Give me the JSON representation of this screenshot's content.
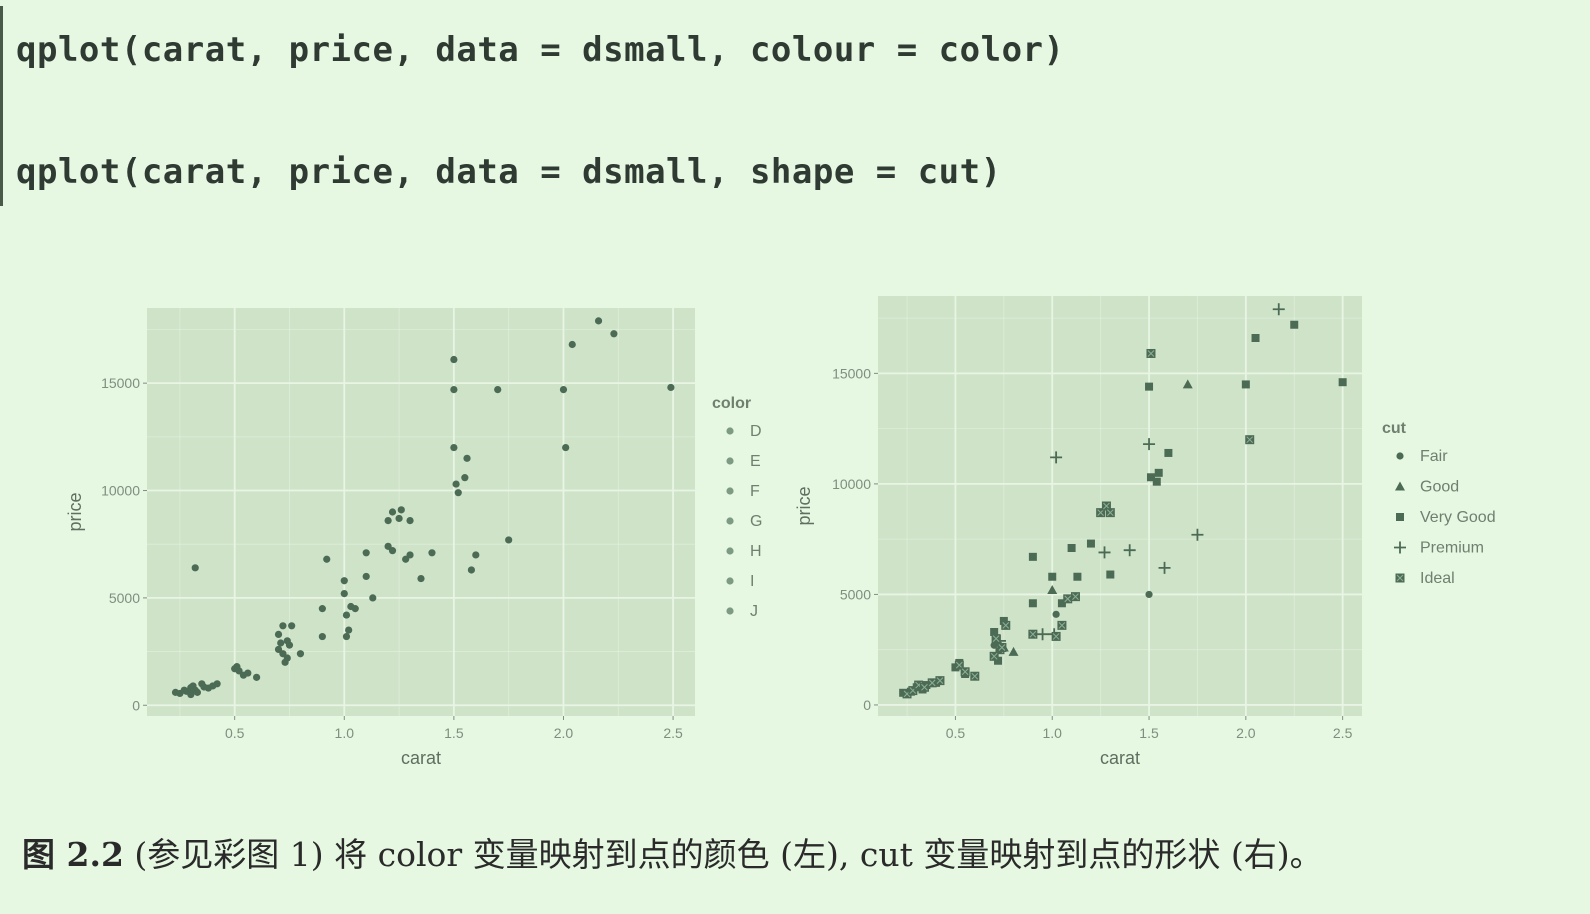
{
  "code": {
    "line1": "qplot(carat, price, data = dsmall, colour = color)",
    "line2": "qplot(carat, price, data = dsmall, shape = cut)"
  },
  "caption": {
    "label": "图 2.2",
    "text": " (参见彩图 1) 将 color 变量映射到点的颜色 (左), cut 变量映射到点的形状 (右)。"
  },
  "colors": {
    "panel": "#cfe3c9",
    "grid": "#e8f5e4",
    "point": "#4c6b55",
    "axis_text": "#7f8f7f"
  },
  "chart_data": [
    {
      "type": "scatter",
      "title": "",
      "xlabel": "carat",
      "ylabel": "price",
      "xlim": [
        0.1,
        2.6
      ],
      "ylim": [
        -500,
        18500
      ],
      "x_ticks": [
        0.5,
        1.0,
        1.5,
        2.0,
        2.5
      ],
      "x_tick_labels": [
        "0.5",
        "1.0",
        "1.5",
        "2.0",
        "2.5"
      ],
      "y_ticks": [
        0,
        5000,
        10000,
        15000
      ],
      "y_tick_labels": [
        "0",
        "5000",
        "10000",
        "15000"
      ],
      "grid": true,
      "legend": {
        "title": "color",
        "position": "right",
        "entries": [
          "D",
          "E",
          "F",
          "G",
          "H",
          "I",
          "J"
        ],
        "shapes": [
          "circle",
          "circle",
          "circle",
          "circle",
          "circle",
          "circle",
          "circle"
        ]
      },
      "series": [
        {
          "x": [
            0.23,
            0.25,
            0.27,
            0.28,
            0.3,
            0.3,
            0.31,
            0.32,
            0.33,
            0.35,
            0.38,
            0.4,
            0.42,
            0.5,
            0.51,
            0.52,
            0.54,
            0.56,
            0.6,
            0.7,
            0.7,
            0.71,
            0.72,
            0.73,
            0.74,
            0.75,
            0.76,
            0.8,
            0.9,
            0.9,
            1.0,
            1.0,
            1.01,
            1.01,
            1.02,
            1.03,
            1.05,
            1.1,
            1.1,
            1.13,
            1.2,
            1.2,
            1.22,
            1.25,
            1.26,
            1.3,
            1.35,
            1.4,
            1.5,
            1.5,
            1.5,
            1.51,
            1.52,
            1.55,
            1.56,
            1.58,
            1.6,
            1.7,
            1.75,
            2.0,
            2.01,
            2.04,
            2.16,
            2.23,
            2.49,
            0.32,
            0.36,
            0.72,
            0.74,
            0.92,
            1.22,
            1.28,
            1.3
          ],
          "y": [
            600,
            550,
            700,
            650,
            820,
            500,
            900,
            700,
            600,
            1000,
            800,
            900,
            1000,
            1700,
            1800,
            1600,
            1400,
            1500,
            1300,
            3300,
            2600,
            2900,
            2400,
            2000,
            3000,
            2800,
            3700,
            2400,
            4500,
            3200,
            5800,
            5200,
            4200,
            3200,
            3500,
            4600,
            4500,
            6000,
            7100,
            5000,
            7400,
            8600,
            9000,
            8700,
            9100,
            7000,
            5900,
            7100,
            14700,
            12000,
            16100,
            10300,
            9900,
            10600,
            11500,
            6300,
            7000,
            14700,
            7700,
            14700,
            12000,
            16800,
            17900,
            17300,
            14800,
            6400,
            850,
            3700,
            2200,
            6800,
            7200,
            6800,
            8600
          ]
        }
      ]
    },
    {
      "type": "scatter",
      "title": "",
      "xlabel": "carat",
      "ylabel": "price",
      "xlim": [
        0.1,
        2.6
      ],
      "ylim": [
        -500,
        18500
      ],
      "x_ticks": [
        0.5,
        1.0,
        1.5,
        2.0,
        2.5
      ],
      "x_tick_labels": [
        "0.5",
        "1.0",
        "1.5",
        "2.0",
        "2.5"
      ],
      "y_ticks": [
        0,
        5000,
        10000,
        15000
      ],
      "y_tick_labels": [
        "0",
        "5000",
        "10000",
        "15000"
      ],
      "grid": true,
      "legend": {
        "title": "cut",
        "position": "right",
        "entries": [
          "Fair",
          "Good",
          "Very Good",
          "Premium",
          "Ideal"
        ],
        "shapes": [
          "circle",
          "triangle",
          "square",
          "plus",
          "square-x"
        ]
      },
      "series": [
        {
          "name": "Fair",
          "x": [
            1.5,
            1.02,
            0.7
          ],
          "y": [
            5000,
            4100,
            2700
          ]
        },
        {
          "name": "Good",
          "x": [
            1.7,
            0.75,
            0.8,
            1.0,
            0.72
          ],
          "y": [
            14500,
            2600,
            2400,
            5200,
            2900
          ]
        },
        {
          "name": "Very Good",
          "x": [
            0.23,
            0.27,
            0.3,
            0.33,
            0.35,
            0.4,
            0.5,
            0.52,
            0.55,
            0.7,
            0.72,
            0.75,
            0.9,
            0.9,
            1.0,
            1.05,
            1.1,
            1.13,
            1.2,
            1.3,
            1.5,
            1.51,
            1.54,
            1.55,
            1.6,
            2.0,
            2.05,
            2.25,
            2.5
          ],
          "y": [
            550,
            600,
            800,
            700,
            900,
            1000,
            1700,
            1900,
            1400,
            3300,
            2000,
            3800,
            6700,
            4600,
            5800,
            4600,
            7100,
            5800,
            7300,
            5900,
            14400,
            10300,
            10100,
            10500,
            11400,
            14500,
            16600,
            17200,
            14600
          ]
        },
        {
          "name": "Premium",
          "x": [
            1.02,
            1.5,
            1.27,
            1.4,
            1.58,
            1.75,
            2.17,
            0.95,
            1.01,
            0.73
          ],
          "y": [
            11200,
            11800,
            6900,
            7000,
            6200,
            7700,
            17900,
            3200,
            3200,
            2900
          ]
        },
        {
          "name": "Ideal",
          "x": [
            0.25,
            0.28,
            0.31,
            0.34,
            0.38,
            0.42,
            0.52,
            0.55,
            0.6,
            0.71,
            0.73,
            0.76,
            0.9,
            1.02,
            1.05,
            1.08,
            1.12,
            1.25,
            1.28,
            1.3,
            1.51,
            2.02,
            0.7,
            0.74
          ],
          "y": [
            500,
            650,
            900,
            800,
            1000,
            1100,
            1800,
            1500,
            1300,
            3000,
            2500,
            3600,
            3200,
            3100,
            3600,
            4800,
            4900,
            8700,
            9000,
            8700,
            15900,
            12000,
            2200,
            2600
          ]
        }
      ]
    }
  ]
}
